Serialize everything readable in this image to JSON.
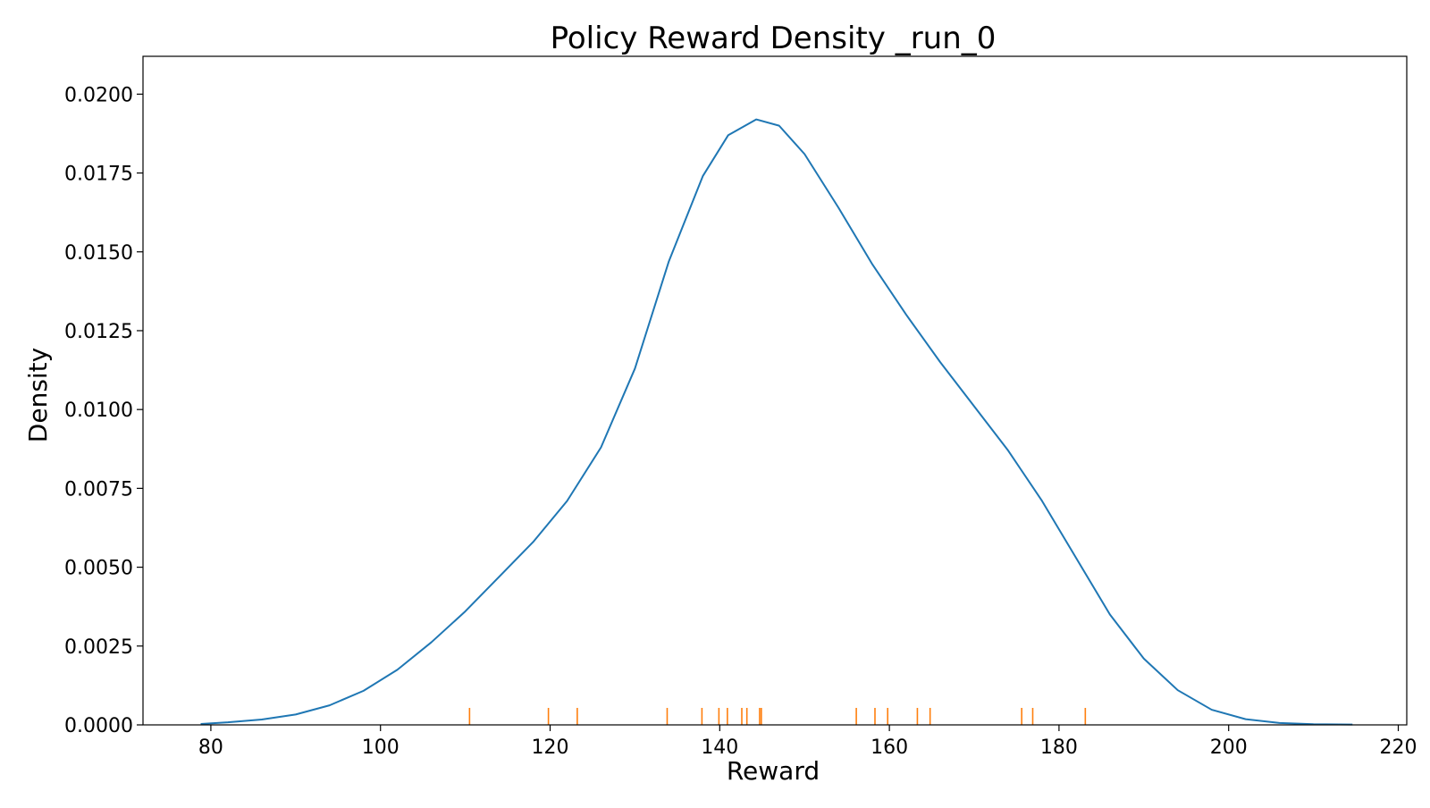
{
  "chart_data": {
    "type": "line",
    "title": "Policy Reward Density _run_0",
    "xlabel": "Reward",
    "ylabel": "Density",
    "xlim": [
      72,
      221
    ],
    "ylim": [
      0,
      0.0212
    ],
    "xticks": [
      80,
      100,
      120,
      140,
      160,
      180,
      200,
      220
    ],
    "xtick_labels": [
      "80",
      "100",
      "120",
      "140",
      "160",
      "180",
      "200",
      "220"
    ],
    "yticks": [
      0,
      0.0025,
      0.005,
      0.0075,
      0.01,
      0.0125,
      0.015,
      0.0175,
      0.02
    ],
    "ytick_labels": [
      "0.0000",
      "0.0025",
      "0.0050",
      "0.0075",
      "0.0100",
      "0.0125",
      "0.0150",
      "0.0175",
      "0.0200"
    ],
    "grid": false,
    "colors": {
      "density": "#1f77b4",
      "rug": "#ff7f0e"
    },
    "series": [
      {
        "kind": "density-curve",
        "x": [
          78.8,
          82,
          86,
          90,
          94,
          98,
          102,
          106,
          110,
          114,
          118,
          122,
          126,
          130,
          134,
          138,
          141,
          144.3,
          147,
          150,
          154,
          158,
          162,
          166,
          170,
          174,
          178,
          182,
          186,
          190,
          194,
          198,
          202,
          206,
          210,
          214.6
        ],
        "y": [
          3e-05,
          8e-05,
          0.00017,
          0.00033,
          0.00062,
          0.00108,
          0.00175,
          0.00262,
          0.0036,
          0.0047,
          0.0058,
          0.0071,
          0.0088,
          0.0113,
          0.0147,
          0.0174,
          0.0187,
          0.0192,
          0.019,
          0.0181,
          0.0164,
          0.0146,
          0.013,
          0.0115,
          0.0101,
          0.0087,
          0.0071,
          0.0053,
          0.0035,
          0.0021,
          0.0011,
          0.00048,
          0.00018,
          6e-05,
          2e-05,
          1e-05
        ]
      },
      {
        "kind": "rug",
        "x": [
          110.5,
          119.8,
          123.2,
          133.8,
          137.9,
          139.9,
          140.9,
          142.6,
          143.2,
          144.7,
          144.9,
          156.1,
          158.3,
          159.8,
          163.3,
          164.8,
          175.6,
          176.9,
          183.1
        ]
      }
    ]
  }
}
